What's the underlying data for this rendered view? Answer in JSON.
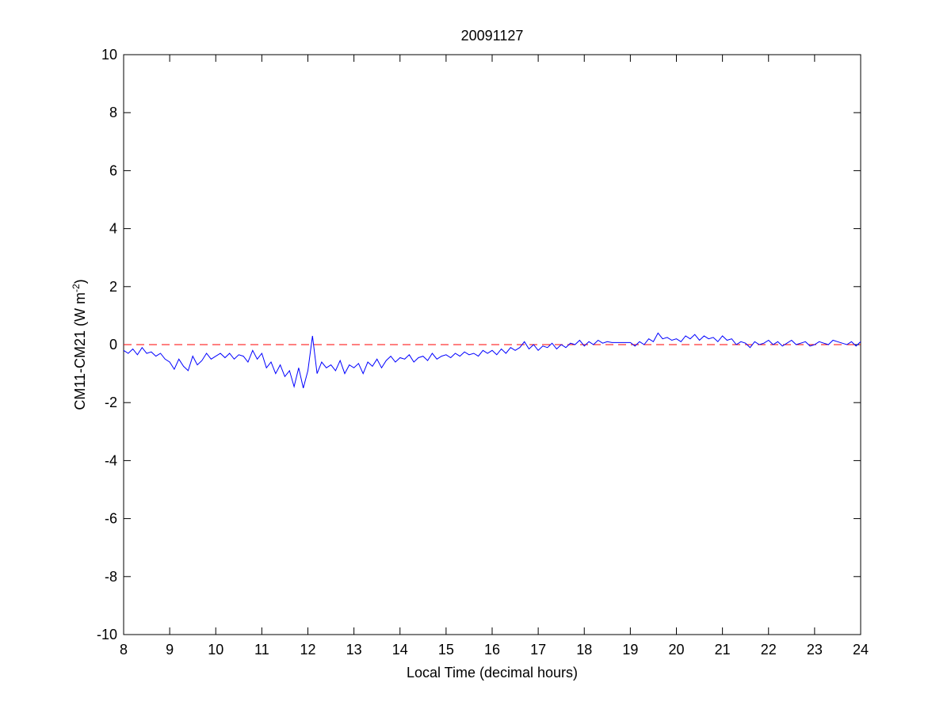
{
  "chart_data": {
    "type": "line",
    "title": "20091127",
    "xlabel": "Local Time (decimal hours)",
    "ylabel": "CM11-CM21 (W m",
    "ylabel_sup": "-2",
    "ylabel_close": ")",
    "xlim": [
      8,
      24
    ],
    "ylim": [
      -10,
      10
    ],
    "xticks": [
      8,
      9,
      10,
      11,
      12,
      13,
      14,
      15,
      16,
      17,
      18,
      19,
      20,
      21,
      22,
      23,
      24
    ],
    "yticks": [
      -10,
      -8,
      -6,
      -4,
      -2,
      0,
      2,
      4,
      6,
      8,
      10
    ],
    "reference_line": {
      "y": 0,
      "color": "#ff0000",
      "style": "dashed"
    },
    "series": [
      {
        "name": "CM11-CM21",
        "color": "#0000ff",
        "x_start": 8,
        "x_step": 0.1,
        "values": [
          -0.2,
          -0.3,
          -0.15,
          -0.35,
          -0.1,
          -0.3,
          -0.25,
          -0.4,
          -0.3,
          -0.5,
          -0.6,
          -0.85,
          -0.5,
          -0.75,
          -0.9,
          -0.4,
          -0.7,
          -0.55,
          -0.3,
          -0.5,
          -0.4,
          -0.3,
          -0.45,
          -0.3,
          -0.5,
          -0.35,
          -0.4,
          -0.6,
          -0.2,
          -0.5,
          -0.3,
          -0.8,
          -0.6,
          -1.0,
          -0.7,
          -1.1,
          -0.9,
          -1.45,
          -0.8,
          -1.5,
          -0.9,
          0.3,
          -1.0,
          -0.6,
          -0.8,
          -0.7,
          -0.9,
          -0.55,
          -1.0,
          -0.7,
          -0.8,
          -0.65,
          -1.0,
          -0.6,
          -0.75,
          -0.5,
          -0.8,
          -0.55,
          -0.4,
          -0.6,
          -0.45,
          -0.5,
          -0.35,
          -0.6,
          -0.45,
          -0.4,
          -0.55,
          -0.3,
          -0.5,
          -0.4,
          -0.35,
          -0.45,
          -0.3,
          -0.4,
          -0.25,
          -0.35,
          -0.3,
          -0.4,
          -0.2,
          -0.3,
          -0.2,
          -0.35,
          -0.15,
          -0.3,
          -0.1,
          -0.2,
          -0.1,
          0.1,
          -0.15,
          0.0,
          -0.2,
          -0.05,
          -0.1,
          0.05,
          -0.15,
          0.0,
          -0.1,
          0.05,
          0.0,
          0.15,
          -0.05,
          0.1,
          0.0,
          0.15,
          0.05,
          0.1,
          0.07,
          0.07,
          0.07,
          0.07,
          0.07,
          -0.05,
          0.1,
          0.0,
          0.2,
          0.1,
          0.4,
          0.2,
          0.25,
          0.15,
          0.2,
          0.1,
          0.3,
          0.2,
          0.35,
          0.15,
          0.3,
          0.2,
          0.25,
          0.1,
          0.3,
          0.15,
          0.2,
          0.0,
          0.1,
          0.05,
          -0.1,
          0.1,
          0.0,
          0.05,
          0.15,
          0.0,
          0.1,
          -0.05,
          0.05,
          0.15,
          0.0,
          0.05,
          0.1,
          -0.05,
          0.0,
          0.1,
          0.05,
          0.0,
          0.15,
          0.1,
          0.05,
          0.0,
          0.1,
          -0.05,
          0.1
        ]
      }
    ]
  }
}
